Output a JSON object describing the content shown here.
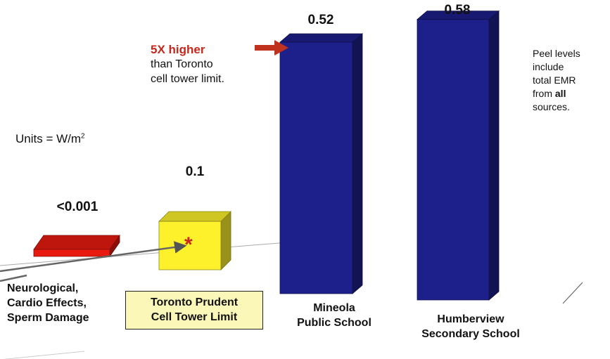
{
  "chart_data": {
    "type": "bar",
    "title": "",
    "units_label": "Units = W/m",
    "units_superscript": "2",
    "categories": [
      "Neurological, Cardio Effects, Sperm Damage",
      "Toronto Prudent Cell Tower Limit",
      "Mineola Public School",
      "Humberview Secondary School"
    ],
    "category_lines": [
      [
        "Neurological,",
        "Cardio Effects,",
        "Sperm Damage"
      ],
      [
        "Toronto Prudent",
        "Cell Tower Limit"
      ],
      [
        "Mineola",
        "Public School"
      ],
      [
        "Humberview",
        "Secondary School"
      ]
    ],
    "values": [
      0.001,
      0.1,
      0.52,
      0.58
    ],
    "value_labels": [
      "<0.001",
      "0.1",
      "0.52",
      "0.58"
    ],
    "ylim": [
      0,
      0.6
    ],
    "bar_colors": [
      "#e8190f",
      "#fdf12b",
      "#1d1f8a",
      "#1d1f8a"
    ],
    "annotations": {
      "callout_highlight": "5X higher",
      "callout_line1": "than Toronto",
      "callout_line2": "cell tower limit.",
      "peel_note_lines": [
        "Peel levels",
        "include",
        "total EMR",
        "from ",
        "sources."
      ],
      "peel_note_bold": "all",
      "marker": "*"
    }
  }
}
